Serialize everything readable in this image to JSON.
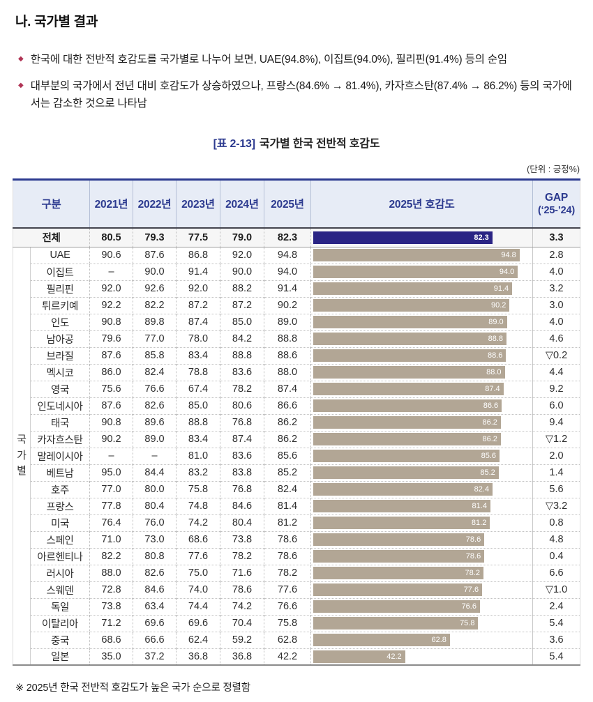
{
  "page": {
    "heading": "나. 국가별 결과",
    "bullets": [
      "한국에 대한 전반적 호감도를 국가별로 나누어 보면, UAE(94.8%), 이집트(94.0%), 필리핀(91.4%) 등의 순임",
      "대부분의 국가에서 전년 대비 호감도가 상승하였으나, 프랑스(84.6% → 81.4%), 카자흐스탄(87.4% → 86.2%) 등의 국가에서는 감소한 것으로 나타남"
    ],
    "table_title_tag": "[표 2-13]",
    "table_title_text": "국가별 한국 전반적 호감도",
    "unit_label": "(단위 : 긍정%)",
    "footnote": "※ 2025년 한국 전반적 호감도가 높은 국가 순으로 정렬함"
  },
  "colors": {
    "accent_navy": "#2c3a8f",
    "bar_navy": "#2a2484",
    "bar_tan": "#b2a695",
    "header_bg": "#e7ecf6",
    "bullet_red": "#b03455",
    "total_row_bg": "#f6f6f6"
  },
  "table": {
    "group_label": "국가별",
    "headers": {
      "gubun": "구분",
      "years": [
        "2021년",
        "2022년",
        "2023년",
        "2024년",
        "2025년"
      ],
      "bar": "2025년 호감도",
      "gap_line1": "GAP",
      "gap_line2": "(‘25-’24)"
    },
    "total_row": {
      "label": "전체",
      "values": [
        "80.5",
        "79.3",
        "77.5",
        "79.0",
        "82.3"
      ],
      "bar": 82.3,
      "bar_label": "82.3",
      "gap": "3.3"
    },
    "rows": [
      {
        "label": "UAE",
        "values": [
          "90.6",
          "87.6",
          "86.8",
          "92.0",
          "94.8"
        ],
        "bar": 94.8,
        "bar_label": "94.8",
        "gap": "2.8"
      },
      {
        "label": "이집트",
        "values": [
          "–",
          "90.0",
          "91.4",
          "90.0",
          "94.0"
        ],
        "bar": 94.0,
        "bar_label": "94.0",
        "gap": "4.0"
      },
      {
        "label": "필리핀",
        "values": [
          "92.0",
          "92.6",
          "92.0",
          "88.2",
          "91.4"
        ],
        "bar": 91.4,
        "bar_label": "91.4",
        "gap": "3.2"
      },
      {
        "label": "튀르키예",
        "values": [
          "92.2",
          "82.2",
          "87.2",
          "87.2",
          "90.2"
        ],
        "bar": 90.2,
        "bar_label": "90.2",
        "gap": "3.0"
      },
      {
        "label": "인도",
        "values": [
          "90.8",
          "89.8",
          "87.4",
          "85.0",
          "89.0"
        ],
        "bar": 89.0,
        "bar_label": "89.0",
        "gap": "4.0"
      },
      {
        "label": "남아공",
        "values": [
          "79.6",
          "77.0",
          "78.0",
          "84.2",
          "88.8"
        ],
        "bar": 88.8,
        "bar_label": "88.8",
        "gap": "4.6"
      },
      {
        "label": "브라질",
        "values": [
          "87.6",
          "85.8",
          "83.4",
          "88.8",
          "88.6"
        ],
        "bar": 88.6,
        "bar_label": "88.6",
        "gap": "▽0.2"
      },
      {
        "label": "멕시코",
        "values": [
          "86.0",
          "82.4",
          "78.8",
          "83.6",
          "88.0"
        ],
        "bar": 88.0,
        "bar_label": "88.0",
        "gap": "4.4"
      },
      {
        "label": "영국",
        "values": [
          "75.6",
          "76.6",
          "67.4",
          "78.2",
          "87.4"
        ],
        "bar": 87.4,
        "bar_label": "87.4",
        "gap": "9.2"
      },
      {
        "label": "인도네시아",
        "values": [
          "87.6",
          "82.6",
          "85.0",
          "80.6",
          "86.6"
        ],
        "bar": 86.6,
        "bar_label": "86.6",
        "gap": "6.0"
      },
      {
        "label": "태국",
        "values": [
          "90.8",
          "89.6",
          "88.8",
          "76.8",
          "86.2"
        ],
        "bar": 86.2,
        "bar_label": "86.2",
        "gap": "9.4"
      },
      {
        "label": "카자흐스탄",
        "values": [
          "90.2",
          "89.0",
          "83.4",
          "87.4",
          "86.2"
        ],
        "bar": 86.2,
        "bar_label": "86.2",
        "gap": "▽1.2"
      },
      {
        "label": "말레이시아",
        "values": [
          "–",
          "–",
          "81.0",
          "83.6",
          "85.6"
        ],
        "bar": 85.6,
        "bar_label": "85.6",
        "gap": "2.0"
      },
      {
        "label": "베트남",
        "values": [
          "95.0",
          "84.4",
          "83.2",
          "83.8",
          "85.2"
        ],
        "bar": 85.2,
        "bar_label": "85.2",
        "gap": "1.4"
      },
      {
        "label": "호주",
        "values": [
          "77.0",
          "80.0",
          "75.8",
          "76.8",
          "82.4"
        ],
        "bar": 82.4,
        "bar_label": "82.4",
        "gap": "5.6"
      },
      {
        "label": "프랑스",
        "values": [
          "77.8",
          "80.4",
          "74.8",
          "84.6",
          "81.4"
        ],
        "bar": 81.4,
        "bar_label": "81.4",
        "gap": "▽3.2"
      },
      {
        "label": "미국",
        "values": [
          "76.4",
          "76.0",
          "74.2",
          "80.4",
          "81.2"
        ],
        "bar": 81.2,
        "bar_label": "81.2",
        "gap": "0.8"
      },
      {
        "label": "스페인",
        "values": [
          "71.0",
          "73.0",
          "68.6",
          "73.8",
          "78.6"
        ],
        "bar": 78.6,
        "bar_label": "78.6",
        "gap": "4.8"
      },
      {
        "label": "아르헨티나",
        "values": [
          "82.2",
          "80.8",
          "77.6",
          "78.2",
          "78.6"
        ],
        "bar": 78.6,
        "bar_label": "78.6",
        "gap": "0.4"
      },
      {
        "label": "러시아",
        "values": [
          "88.0",
          "82.6",
          "75.0",
          "71.6",
          "78.2"
        ],
        "bar": 78.2,
        "bar_label": "78.2",
        "gap": "6.6"
      },
      {
        "label": "스웨덴",
        "values": [
          "72.8",
          "84.6",
          "74.0",
          "78.6",
          "77.6"
        ],
        "bar": 77.6,
        "bar_label": "77.6",
        "gap": "▽1.0"
      },
      {
        "label": "독일",
        "values": [
          "73.8",
          "63.4",
          "74.4",
          "74.2",
          "76.6"
        ],
        "bar": 76.6,
        "bar_label": "76.6",
        "gap": "2.4"
      },
      {
        "label": "이탈리아",
        "values": [
          "71.2",
          "69.6",
          "69.6",
          "70.4",
          "75.8"
        ],
        "bar": 75.8,
        "bar_label": "75.8",
        "gap": "5.4"
      },
      {
        "label": "중국",
        "values": [
          "68.6",
          "66.6",
          "62.4",
          "59.2",
          "62.8"
        ],
        "bar": 62.8,
        "bar_label": "62.8",
        "gap": "3.6"
      },
      {
        "label": "일본",
        "values": [
          "35.0",
          "37.2",
          "36.8",
          "36.8",
          "42.2"
        ],
        "bar": 42.2,
        "bar_label": "42.2",
        "gap": "5.4"
      }
    ]
  },
  "chart_data": {
    "type": "bar",
    "title": "2025년 호감도",
    "orientation": "horizontal",
    "categories": [
      "전체",
      "UAE",
      "이집트",
      "필리핀",
      "튀르키예",
      "인도",
      "남아공",
      "브라질",
      "멕시코",
      "영국",
      "인도네시아",
      "태국",
      "카자흐스탄",
      "말레이시아",
      "베트남",
      "호주",
      "프랑스",
      "미국",
      "스페인",
      "아르헨티나",
      "러시아",
      "스웨덴",
      "독일",
      "이탈리아",
      "중국",
      "일본"
    ],
    "values": [
      82.3,
      94.8,
      94.0,
      91.4,
      90.2,
      89.0,
      88.8,
      88.6,
      88.0,
      87.4,
      86.6,
      86.2,
      86.2,
      85.6,
      85.2,
      82.4,
      81.4,
      81.2,
      78.6,
      78.6,
      78.2,
      77.6,
      76.6,
      75.8,
      62.8,
      42.2
    ],
    "xlim": [
      0,
      100
    ],
    "unit": "긍정%",
    "grid": false,
    "legend": "none"
  }
}
